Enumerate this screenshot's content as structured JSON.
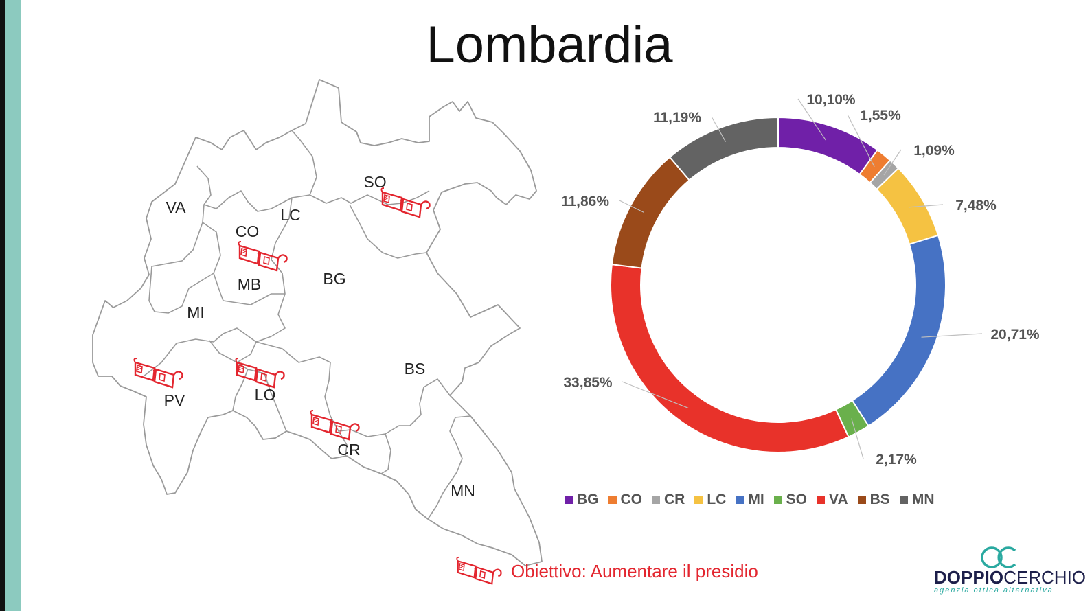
{
  "title": "Lombardia",
  "map": {
    "provinces": [
      {
        "code": "VA"
      },
      {
        "code": "CO"
      },
      {
        "code": "LC"
      },
      {
        "code": "SO"
      },
      {
        "code": "MB"
      },
      {
        "code": "BG"
      },
      {
        "code": "MI"
      },
      {
        "code": "BS"
      },
      {
        "code": "PV"
      },
      {
        "code": "LO"
      },
      {
        "code": "CR"
      },
      {
        "code": "MN"
      }
    ],
    "marked_provinces": [
      "SO",
      "CO",
      "PV",
      "LO",
      "CR"
    ]
  },
  "legend_caption": "Obiettivo: Aumentare il presidio",
  "logo": {
    "brand_bold": "DOPPIO",
    "brand_light": "CERCHIO",
    "tagline": "agenzia ottica alternativa"
  },
  "colors": {
    "accent_red": "#e3262f",
    "stripe": "#8ccabf"
  },
  "chart_data": {
    "type": "pie",
    "donut": true,
    "categories": [
      "BG",
      "CO",
      "CR",
      "LC",
      "MI",
      "SO",
      "VA",
      "BS",
      "MN"
    ],
    "values": [
      10.1,
      1.55,
      1.09,
      7.48,
      20.71,
      2.17,
      33.85,
      11.86,
      11.19
    ],
    "labels": [
      "10,10%",
      "1,55%",
      "1,09%",
      "7,48%",
      "20,71%",
      "2,17%",
      "33,85%",
      "11,86%",
      "11,19%"
    ],
    "colors": [
      "#7020a8",
      "#ee7d31",
      "#a5a5a5",
      "#f5c242",
      "#4672c4",
      "#6ab04c",
      "#e8322a",
      "#9a4a1a",
      "#636363"
    ],
    "legend_position": "bottom"
  }
}
